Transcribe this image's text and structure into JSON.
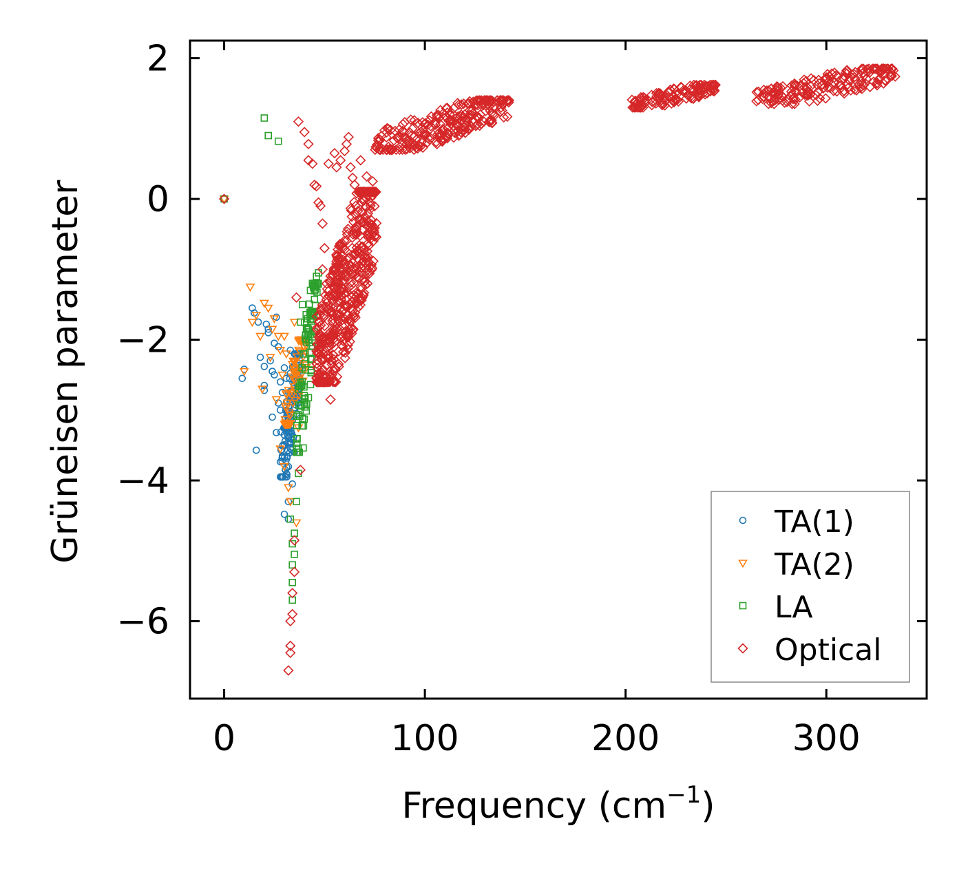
{
  "chart_data": {
    "type": "scatter",
    "title": "",
    "xlabel": "Frequency (cm",
    "xlabel_sup": "−1",
    "xlabel_close": ")",
    "ylabel": "Grüneisen parameter",
    "xlim": [
      -17,
      350
    ],
    "ylim": [
      -7.1,
      2.25
    ],
    "x_ticks": [
      0,
      100,
      200,
      300
    ],
    "x_tick_labels": [
      "0",
      "100",
      "200",
      "300"
    ],
    "y_ticks": [
      -6,
      -4,
      -2,
      0,
      2
    ],
    "y_tick_labels": [
      "−6",
      "−4",
      "−2",
      "0",
      "2"
    ],
    "grid": false,
    "legend_position": "bottom-right",
    "series": [
      {
        "name": "TA(1)",
        "marker": "circle",
        "color": "#1f77b4",
        "points": [
          [
            0,
            0
          ],
          [
            9,
            -2.55
          ],
          [
            10,
            -2.42
          ],
          [
            14,
            -1.55
          ],
          [
            15,
            -1.62
          ],
          [
            16,
            -3.57
          ],
          [
            17,
            -1.75
          ],
          [
            18,
            -2.25
          ],
          [
            20,
            -2.38
          ],
          [
            20,
            -2.65
          ],
          [
            20,
            -2.72
          ],
          [
            21,
            -1.78
          ],
          [
            22,
            -1.85
          ],
          [
            22,
            -1.9
          ],
          [
            23,
            -2.3
          ],
          [
            24,
            -2.45
          ],
          [
            24,
            -3.1
          ],
          [
            25,
            -2.05
          ],
          [
            25,
            -2.5
          ],
          [
            26,
            -3.32
          ],
          [
            26,
            -1.68
          ],
          [
            27,
            -2.1
          ],
          [
            27,
            -2.9
          ],
          [
            28,
            -2.6
          ],
          [
            28,
            -3.0
          ],
          [
            29,
            -2.75
          ],
          [
            29,
            -3.65
          ],
          [
            30,
            -2.4
          ],
          [
            30,
            -4.48
          ],
          [
            31,
            -2.55
          ],
          [
            31,
            -3.3
          ],
          [
            31,
            -3.9
          ],
          [
            32,
            -4.3
          ],
          [
            32,
            -4.55
          ],
          [
            33,
            -2.15
          ],
          [
            33,
            -2.85
          ],
          [
            33,
            -3.45
          ],
          [
            34,
            -3.15
          ],
          [
            34,
            -4.05
          ],
          [
            35,
            -2.65
          ],
          [
            35,
            -3.6
          ],
          [
            36,
            -3.05
          ]
        ],
        "clusters": [
          [
            28,
            38,
            -3.95,
            -2.2,
            140
          ]
        ]
      },
      {
        "name": "TA(2)",
        "marker": "triangle-down",
        "color": "#ff7f0e",
        "points": [
          [
            0,
            0
          ],
          [
            10,
            -2.45
          ],
          [
            13,
            -1.25
          ],
          [
            14,
            -1.75
          ],
          [
            16,
            -1.65
          ],
          [
            18,
            -1.95
          ],
          [
            19,
            -2.7
          ],
          [
            20,
            -1.48
          ],
          [
            22,
            -1.55
          ],
          [
            23,
            -2.25
          ],
          [
            24,
            -1.85
          ],
          [
            25,
            -1.7
          ],
          [
            26,
            -2.85
          ],
          [
            27,
            -1.95
          ],
          [
            28,
            -2.15
          ],
          [
            28,
            -3.55
          ],
          [
            29,
            -2.5
          ],
          [
            30,
            -1.95
          ],
          [
            30,
            -3.8
          ],
          [
            31,
            -2.2
          ],
          [
            32,
            -4.1
          ],
          [
            33,
            -4.3
          ],
          [
            34,
            -2.35
          ],
          [
            35,
            -1.75
          ],
          [
            36,
            -4.6
          ],
          [
            37,
            -3.25
          ]
        ],
        "clusters": [
          [
            30,
            41,
            -3.2,
            -2.0,
            70
          ]
        ]
      },
      {
        "name": "LA",
        "marker": "square",
        "color": "#2ca02c",
        "points": [
          [
            0,
            0
          ],
          [
            20,
            1.15
          ],
          [
            22,
            0.9
          ],
          [
            27,
            0.82
          ],
          [
            33,
            -4.55
          ],
          [
            34,
            -4.9
          ],
          [
            34,
            -5.2
          ],
          [
            34,
            -5.45
          ],
          [
            34,
            -5.7
          ],
          [
            35,
            -4.75
          ],
          [
            35,
            -5.05
          ],
          [
            36,
            -4.3
          ],
          [
            37,
            -3.9
          ],
          [
            38,
            -1.75
          ],
          [
            39,
            -1.5
          ],
          [
            41,
            -1.85
          ],
          [
            43,
            -1.3
          ],
          [
            44,
            -1.2
          ],
          [
            46,
            -1.1
          ],
          [
            47,
            -1.05
          ]
        ],
        "clusters": [
          [
            36,
            45,
            -3.6,
            -1.6,
            70
          ],
          [
            40,
            47,
            -2.0,
            -1.2,
            35
          ]
        ]
      },
      {
        "name": "Optical",
        "marker": "diamond",
        "color": "#d62728",
        "points": [
          [
            0,
            0
          ],
          [
            32,
            -6.7
          ],
          [
            33,
            -6.0
          ],
          [
            33,
            -6.35
          ],
          [
            33,
            -6.45
          ],
          [
            34,
            -5.6
          ],
          [
            34,
            -5.9
          ],
          [
            35,
            -5.3
          ],
          [
            35,
            -4.85
          ],
          [
            36,
            -1.4
          ],
          [
            37,
            1.1
          ],
          [
            38,
            -3.85
          ],
          [
            40,
            0.95
          ],
          [
            42,
            0.78
          ],
          [
            42,
            0.55
          ],
          [
            44,
            0.5
          ],
          [
            45,
            0.2
          ],
          [
            46,
            0.18
          ],
          [
            47,
            -0.05
          ],
          [
            48,
            -0.1
          ],
          [
            46,
            -2.55
          ],
          [
            52,
            -2.0
          ],
          [
            53,
            -2.85
          ],
          [
            54,
            -2.55
          ],
          [
            54,
            -1.45
          ],
          [
            55,
            0.65
          ],
          [
            56,
            0.45
          ],
          [
            58,
            0.55
          ],
          [
            60,
            0.68
          ],
          [
            61,
            0.78
          ],
          [
            62,
            0.88
          ],
          [
            63,
            0.45
          ],
          [
            64,
            0.3
          ],
          [
            65,
            0.2
          ],
          [
            66,
            0.08
          ],
          [
            68,
            0.55
          ],
          [
            71,
            0.32
          ],
          [
            74,
            0.25
          ],
          [
            74,
            0.05
          ],
          [
            70,
            -0.25
          ],
          [
            72,
            -0.55
          ],
          [
            52,
            0.5
          ],
          [
            49,
            -0.35
          ],
          [
            49,
            -1.0
          ],
          [
            50,
            -0.7
          ]
        ],
        "clusters": [
          [
            46,
            76,
            -2.6,
            0.1,
            520
          ],
          [
            75,
            142,
            0.7,
            1.4,
            260
          ],
          [
            203,
            245,
            1.3,
            1.62,
            120
          ],
          [
            265,
            335,
            1.35,
            1.85,
            180
          ]
        ]
      }
    ]
  }
}
